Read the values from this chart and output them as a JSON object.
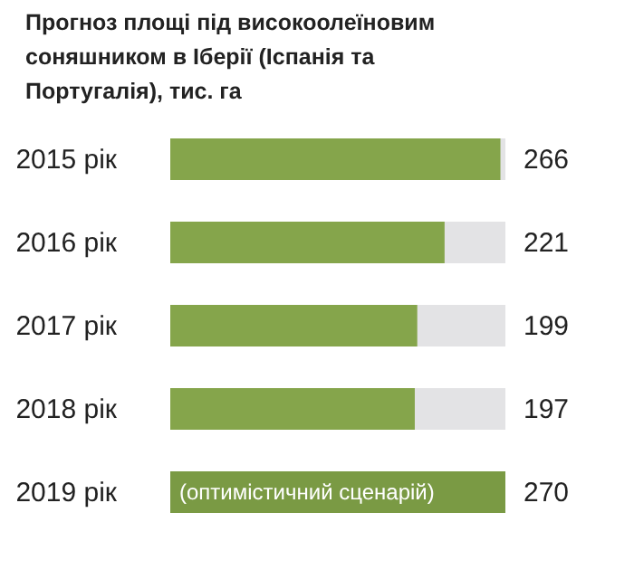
{
  "chart_data": {
    "type": "bar",
    "orientation": "horizontal",
    "title": "Прогноз площі під високоолеїновим соняшником в Іберії (Іспанія та Португалія), тис. га",
    "categories": [
      "2015 рік",
      "2016 рік",
      "2017 рік",
      "2018 рік",
      "2019 рік"
    ],
    "values": [
      266,
      221,
      199,
      197,
      270
    ],
    "colors": [
      "#85a54b",
      "#85a54b",
      "#85a54b",
      "#85a54b",
      "#7a9a44"
    ],
    "data_labels": true,
    "annotations": [
      "(оптимістичний сценарій)"
    ]
  }
}
